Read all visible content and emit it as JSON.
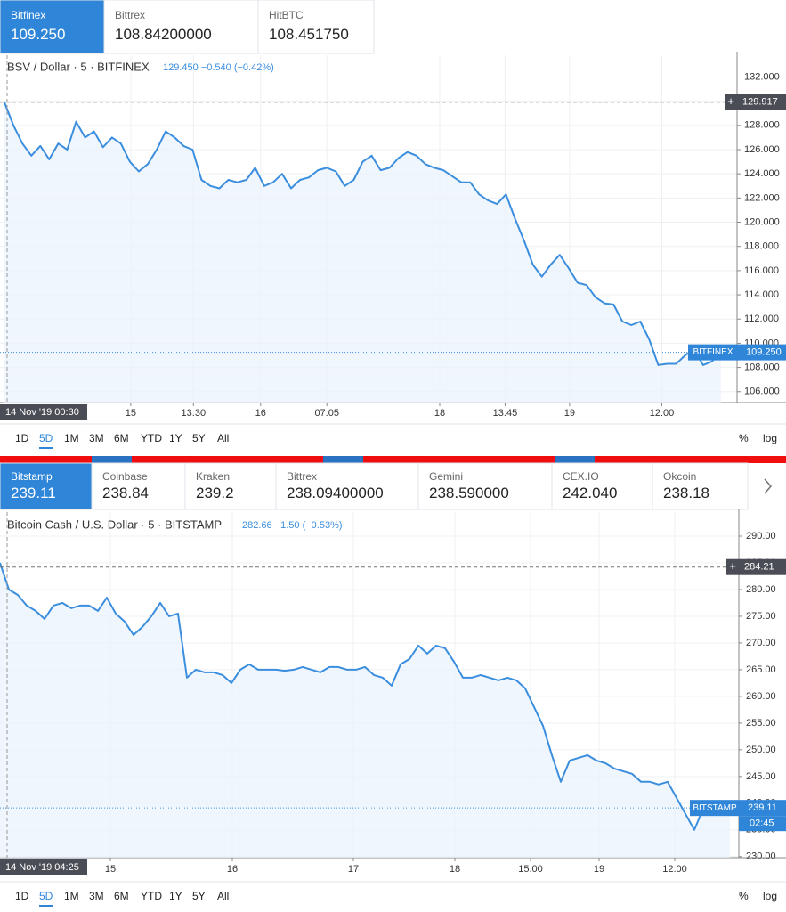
{
  "tickers": [
    [
      {
        "name": "Bitfinex",
        "price": "109.250"
      },
      {
        "name": "Bittrex",
        "price": "108.84200000"
      },
      {
        "name": "HitBTC",
        "price": "108.451750"
      }
    ],
    [
      {
        "name": "Bitstamp",
        "price": "239.11"
      },
      {
        "name": "Coinbase",
        "price": "238.84"
      },
      {
        "name": "Kraken",
        "price": "239.2"
      },
      {
        "name": "Bittrex",
        "price": "238.09400000"
      },
      {
        "name": "Gemini",
        "price": "238.590000"
      },
      {
        "name": "CEX.IO",
        "price": "242.040"
      },
      {
        "name": "Okcoin",
        "price": "238.18"
      }
    ]
  ],
  "periods": [
    "1D",
    "5D",
    "1M",
    "3M",
    "6M",
    "YTD",
    "1Y",
    "5Y",
    "All"
  ],
  "active_period": "5D",
  "scale_buttons": [
    "%",
    "log"
  ],
  "chart_data": [
    {
      "type": "area",
      "title": "BSV / Dollar · 5 · BITFINEX",
      "quote": "129.450 −0.540 (−0.42%)",
      "cursor_time": "14 Nov '19  00:30",
      "series": [
        {
          "name": "BSV / Dollar",
          "color": "#3b8ede",
          "values": [
            129.9,
            128,
            126.5,
            125.5,
            126.3,
            125.2,
            126.5,
            126,
            128.3,
            127,
            127.5,
            126.2,
            127,
            126.5,
            125,
            124.2,
            124.8,
            126,
            127.5,
            127,
            126.3,
            126,
            123.5,
            123,
            122.8,
            123.5,
            123.3,
            123.5,
            124.5,
            123,
            123.3,
            124,
            122.8,
            123.5,
            123.7,
            124.3,
            124.5,
            124.2,
            123,
            123.5,
            125,
            125.5,
            124.3,
            124.5,
            125.3,
            125.8,
            125.5,
            124.8,
            124.5,
            124.3,
            123.8,
            123.3,
            123.3,
            122.3,
            121.8,
            121.5,
            122.3,
            120.3,
            118.5,
            116.5,
            115.5,
            116.5,
            117.3,
            116.2,
            115,
            114.8,
            113.8,
            113.3,
            113.2,
            111.8,
            111.5,
            111.8,
            110.3,
            108.2,
            108.3,
            108.3,
            109,
            109.5,
            108.2,
            108.5,
            109.3
          ]
        }
      ],
      "xlim": [
        -0.5,
        81.8
      ],
      "ylim": [
        105.1,
        133.8
      ],
      "xticks": [
        {
          "value": 14.1,
          "label": "15"
        },
        {
          "value": 21.1,
          "label": "13:30"
        },
        {
          "value": 28.6,
          "label": "16"
        },
        {
          "value": 36.0,
          "label": "07:05"
        },
        {
          "value": 48.6,
          "label": "18"
        },
        {
          "value": 55.9,
          "label": "13:45"
        },
        {
          "value": 63.1,
          "label": "19"
        },
        {
          "value": 73.4,
          "label": "12:00"
        }
      ],
      "yticks": [
        {
          "value": 106,
          "label": "106.000"
        },
        {
          "value": 108,
          "label": "108.000"
        },
        {
          "value": 110,
          "label": "110.000"
        },
        {
          "value": 112,
          "label": "112.000"
        },
        {
          "value": 114,
          "label": "114.000"
        },
        {
          "value": 116,
          "label": "116.000"
        },
        {
          "value": 118,
          "label": "118.000"
        },
        {
          "value": 120,
          "label": "120.000"
        },
        {
          "value": 122,
          "label": "122.000"
        },
        {
          "value": 124,
          "label": "124.000"
        },
        {
          "value": 126,
          "label": "126.000"
        },
        {
          "value": 128,
          "label": "128.000"
        },
        {
          "value": 130,
          "label": "130.000"
        },
        {
          "value": 132,
          "label": "132.000"
        }
      ],
      "grid": true,
      "crosshair": {
        "value": 129.917
      },
      "last_price": {
        "label": "BITFINEX",
        "value": 109.25,
        "value_label": "109.250"
      }
    },
    {
      "type": "area",
      "title": "Bitcoin Cash / U.S. Dollar · 5 · BITSTAMP",
      "quote": "282.66 −1.50 (−0.53%)",
      "cursor_time": "14 Nov '19  04:25",
      "series": [
        {
          "name": "Bitcoin Cash / U.S. Dollar",
          "color": "#3b8ede",
          "values": [
            285,
            280,
            279,
            277,
            276,
            274.5,
            277,
            277.5,
            276.5,
            277,
            277,
            276,
            278.5,
            275.5,
            274,
            271.5,
            273,
            275,
            277.5,
            275,
            275.5,
            263.5,
            265,
            264.5,
            264.5,
            264,
            262.5,
            265,
            266,
            265,
            265,
            265,
            264.8,
            265,
            265.5,
            265,
            264.5,
            265.5,
            265.5,
            265,
            265,
            265.5,
            264,
            263.5,
            262,
            266,
            267,
            269.5,
            268,
            269.5,
            269,
            266.5,
            263.5,
            263.5,
            264,
            263.5,
            263,
            263.5,
            263,
            261.5,
            258,
            254.5,
            249,
            244,
            248,
            248.5,
            249,
            248,
            247.5,
            246.5,
            246,
            245.5,
            244,
            244,
            243.5,
            244,
            241,
            238,
            235,
            239,
            239.5,
            238,
            239.5
          ]
        }
      ],
      "xlim": [
        0,
        83
      ],
      "ylim": [
        229.8,
        294.5
      ],
      "xticks": [
        {
          "value": 12.4,
          "label": "15"
        },
        {
          "value": 26.1,
          "label": "16"
        },
        {
          "value": 39.7,
          "label": "17"
        },
        {
          "value": 51.1,
          "label": "18"
        },
        {
          "value": 59.6,
          "label": "15:00"
        },
        {
          "value": 67.3,
          "label": "19"
        },
        {
          "value": 75.8,
          "label": "12:00"
        }
      ],
      "yticks": [
        {
          "value": 230,
          "label": "230.00"
        },
        {
          "value": 235,
          "label": "235.00"
        },
        {
          "value": 240,
          "label": "240.00"
        },
        {
          "value": 245,
          "label": "245.00"
        },
        {
          "value": 250,
          "label": "250.00"
        },
        {
          "value": 255,
          "label": "255.00"
        },
        {
          "value": 260,
          "label": "260.00"
        },
        {
          "value": 265,
          "label": "265.00"
        },
        {
          "value": 270,
          "label": "270.00"
        },
        {
          "value": 275,
          "label": "275.00"
        },
        {
          "value": 280,
          "label": "280.00"
        },
        {
          "value": 285,
          "label": "285.00"
        },
        {
          "value": 290,
          "label": "290.00"
        }
      ],
      "grid": true,
      "crosshair": {
        "value": 284.21
      },
      "last_price": {
        "label": "BITSTAMP",
        "value": 239.11
      },
      "countdown": "02:45"
    }
  ]
}
